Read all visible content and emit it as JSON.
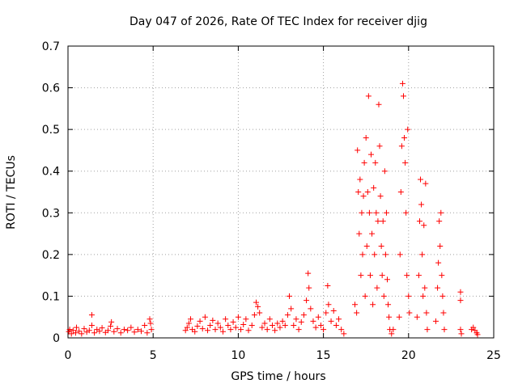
{
  "chart_data": {
    "type": "scatter",
    "title": "Day 047 of 2026, Rate Of TEC Index for receiver djig",
    "xlabel": "GPS time / hours",
    "ylabel": "ROTI / TECUs",
    "xlim": [
      0,
      25
    ],
    "ylim": [
      0,
      0.7
    ],
    "x_ticks": [
      0,
      5,
      10,
      15,
      20,
      25
    ],
    "x_tick_labels": [
      "0",
      "5",
      "10",
      "15",
      "20",
      "25"
    ],
    "y_ticks": [
      0,
      0.1,
      0.2,
      0.3,
      0.4,
      0.5,
      0.6,
      0.7
    ],
    "y_tick_labels": [
      "0",
      "0.1",
      "0.2",
      "0.3",
      "0.4",
      "0.5",
      "0.6",
      "0.7"
    ],
    "grid": true,
    "marker": "+",
    "marker_color": "#ff0000",
    "series": [
      {
        "name": "ROTI",
        "points": [
          [
            0.05,
            0.015
          ],
          [
            0.1,
            0.02
          ],
          [
            0.2,
            0.01
          ],
          [
            0.3,
            0.018
          ],
          [
            0.45,
            0.012
          ],
          [
            0.5,
            0.025
          ],
          [
            0.65,
            0.016
          ],
          [
            0.8,
            0.01
          ],
          [
            0.95,
            0.022
          ],
          [
            1.1,
            0.014
          ],
          [
            1.25,
            0.018
          ],
          [
            1.4,
            0.055
          ],
          [
            1.4,
            0.03
          ],
          [
            1.55,
            0.012
          ],
          [
            1.7,
            0.02
          ],
          [
            1.85,
            0.016
          ],
          [
            2.0,
            0.024
          ],
          [
            2.2,
            0.013
          ],
          [
            2.35,
            0.018
          ],
          [
            2.5,
            0.028
          ],
          [
            2.55,
            0.038
          ],
          [
            2.7,
            0.015
          ],
          [
            2.9,
            0.022
          ],
          [
            3.1,
            0.012
          ],
          [
            3.3,
            0.02
          ],
          [
            3.5,
            0.018
          ],
          [
            3.7,
            0.025
          ],
          [
            3.9,
            0.014
          ],
          [
            4.1,
            0.02
          ],
          [
            4.3,
            0.016
          ],
          [
            4.5,
            0.03
          ],
          [
            4.65,
            0.012
          ],
          [
            4.8,
            0.045
          ],
          [
            4.85,
            0.035
          ],
          [
            4.9,
            0.02
          ],
          [
            6.9,
            0.018
          ],
          [
            7.0,
            0.025
          ],
          [
            7.1,
            0.035
          ],
          [
            7.2,
            0.045
          ],
          [
            7.3,
            0.02
          ],
          [
            7.45,
            0.015
          ],
          [
            7.6,
            0.028
          ],
          [
            7.75,
            0.04
          ],
          [
            7.9,
            0.022
          ],
          [
            8.05,
            0.05
          ],
          [
            8.2,
            0.018
          ],
          [
            8.35,
            0.03
          ],
          [
            8.5,
            0.042
          ],
          [
            8.65,
            0.02
          ],
          [
            8.8,
            0.035
          ],
          [
            8.95,
            0.025
          ],
          [
            9.1,
            0.015
          ],
          [
            9.25,
            0.045
          ],
          [
            9.4,
            0.03
          ],
          [
            9.55,
            0.02
          ],
          [
            9.7,
            0.038
          ],
          [
            9.85,
            0.025
          ],
          [
            10.0,
            0.05
          ],
          [
            10.15,
            0.02
          ],
          [
            10.3,
            0.032
          ],
          [
            10.45,
            0.045
          ],
          [
            10.6,
            0.018
          ],
          [
            10.8,
            0.03
          ],
          [
            10.95,
            0.055
          ],
          [
            11.05,
            0.085
          ],
          [
            11.15,
            0.075
          ],
          [
            11.25,
            0.06
          ],
          [
            11.4,
            0.025
          ],
          [
            11.55,
            0.035
          ],
          [
            11.7,
            0.02
          ],
          [
            11.85,
            0.045
          ],
          [
            12.0,
            0.03
          ],
          [
            12.15,
            0.018
          ],
          [
            12.3,
            0.035
          ],
          [
            12.45,
            0.025
          ],
          [
            12.6,
            0.04
          ],
          [
            12.75,
            0.03
          ],
          [
            12.9,
            0.055
          ],
          [
            13.0,
            0.1
          ],
          [
            13.1,
            0.07
          ],
          [
            13.25,
            0.03
          ],
          [
            13.4,
            0.045
          ],
          [
            13.55,
            0.02
          ],
          [
            13.7,
            0.038
          ],
          [
            13.85,
            0.055
          ],
          [
            14.0,
            0.09
          ],
          [
            14.1,
            0.155
          ],
          [
            14.15,
            0.12
          ],
          [
            14.25,
            0.07
          ],
          [
            14.4,
            0.04
          ],
          [
            14.55,
            0.025
          ],
          [
            14.7,
            0.05
          ],
          [
            14.85,
            0.03
          ],
          [
            15.0,
            0.02
          ],
          [
            15.15,
            0.06
          ],
          [
            15.25,
            0.125
          ],
          [
            15.3,
            0.08
          ],
          [
            15.45,
            0.04
          ],
          [
            15.6,
            0.065
          ],
          [
            15.75,
            0.03
          ],
          [
            15.9,
            0.045
          ],
          [
            16.05,
            0.02
          ],
          [
            16.2,
            0.01
          ],
          [
            16.85,
            0.08
          ],
          [
            16.95,
            0.06
          ],
          [
            17.0,
            0.45
          ],
          [
            17.05,
            0.35
          ],
          [
            17.1,
            0.25
          ],
          [
            17.15,
            0.38
          ],
          [
            17.2,
            0.15
          ],
          [
            17.25,
            0.3
          ],
          [
            17.3,
            0.2
          ],
          [
            17.35,
            0.34
          ],
          [
            17.4,
            0.42
          ],
          [
            17.45,
            0.1
          ],
          [
            17.5,
            0.48
          ],
          [
            17.55,
            0.22
          ],
          [
            17.6,
            0.35
          ],
          [
            17.65,
            0.58
          ],
          [
            17.7,
            0.3
          ],
          [
            17.75,
            0.15
          ],
          [
            17.8,
            0.44
          ],
          [
            17.85,
            0.25
          ],
          [
            17.9,
            0.08
          ],
          [
            17.95,
            0.36
          ],
          [
            18.0,
            0.2
          ],
          [
            18.05,
            0.42
          ],
          [
            18.1,
            0.3
          ],
          [
            18.15,
            0.12
          ],
          [
            18.2,
            0.28
          ],
          [
            18.25,
            0.56
          ],
          [
            18.3,
            0.46
          ],
          [
            18.35,
            0.34
          ],
          [
            18.4,
            0.22
          ],
          [
            18.45,
            0.15
          ],
          [
            18.5,
            0.28
          ],
          [
            18.55,
            0.1
          ],
          [
            18.6,
            0.4
          ],
          [
            18.65,
            0.2
          ],
          [
            18.7,
            0.3
          ],
          [
            18.75,
            0.14
          ],
          [
            18.8,
            0.08
          ],
          [
            18.85,
            0.05
          ],
          [
            18.9,
            0.02
          ],
          [
            19.0,
            0.01
          ],
          [
            19.1,
            0.02
          ],
          [
            19.45,
            0.05
          ],
          [
            19.5,
            0.2
          ],
          [
            19.55,
            0.35
          ],
          [
            19.6,
            0.46
          ],
          [
            19.65,
            0.61
          ],
          [
            19.7,
            0.58
          ],
          [
            19.75,
            0.48
          ],
          [
            19.8,
            0.42
          ],
          [
            19.85,
            0.3
          ],
          [
            19.9,
            0.15
          ],
          [
            19.95,
            0.5
          ],
          [
            20.0,
            0.1
          ],
          [
            20.05,
            0.06
          ],
          [
            20.5,
            0.05
          ],
          [
            20.6,
            0.15
          ],
          [
            20.65,
            0.28
          ],
          [
            20.7,
            0.38
          ],
          [
            20.75,
            0.32
          ],
          [
            20.8,
            0.2
          ],
          [
            20.85,
            0.1
          ],
          [
            20.9,
            0.27
          ],
          [
            20.95,
            0.12
          ],
          [
            21.0,
            0.37
          ],
          [
            21.05,
            0.06
          ],
          [
            21.1,
            0.02
          ],
          [
            21.6,
            0.04
          ],
          [
            21.7,
            0.12
          ],
          [
            21.75,
            0.18
          ],
          [
            21.8,
            0.28
          ],
          [
            21.85,
            0.22
          ],
          [
            21.9,
            0.3
          ],
          [
            21.95,
            0.15
          ],
          [
            22.0,
            0.1
          ],
          [
            22.05,
            0.06
          ],
          [
            22.1,
            0.02
          ],
          [
            23.05,
            0.11
          ],
          [
            23.05,
            0.09
          ],
          [
            23.05,
            0.02
          ],
          [
            23.1,
            0.01
          ],
          [
            23.7,
            0.02
          ],
          [
            23.8,
            0.025
          ],
          [
            23.9,
            0.018
          ],
          [
            24.0,
            0.012
          ],
          [
            24.05,
            0.008
          ]
        ]
      }
    ]
  }
}
